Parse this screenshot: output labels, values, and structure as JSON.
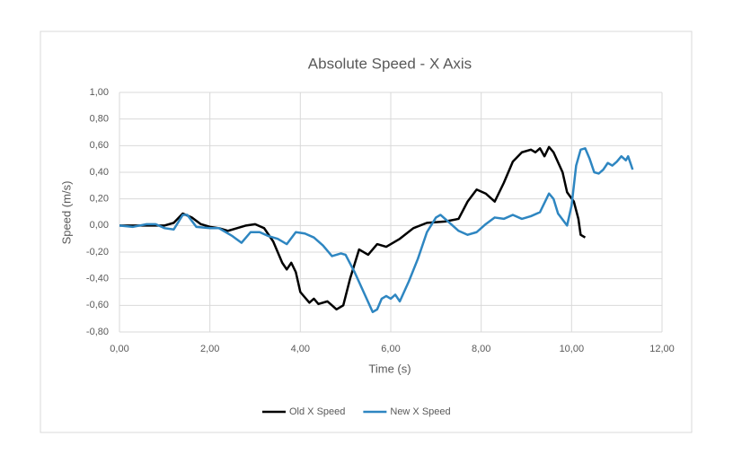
{
  "chart_data": {
    "type": "line",
    "title": "Absolute Speed - X Axis",
    "x_label": "Time (s)",
    "y_label": "Speed (m/s)",
    "xlim": [
      0,
      12
    ],
    "xticks": [
      {
        "value": 0,
        "label": "0,00"
      },
      {
        "value": 2,
        "label": "2,00"
      },
      {
        "value": 4,
        "label": "4,00"
      },
      {
        "value": 6,
        "label": "6,00"
      },
      {
        "value": 8,
        "label": "8,00"
      },
      {
        "value": 10,
        "label": "10,00"
      },
      {
        "value": 12,
        "label": "12,00"
      }
    ],
    "ylim": [
      -0.8,
      1
    ],
    "yticks": [
      {
        "value": -0.8,
        "label": "-0,80"
      },
      {
        "value": -0.6,
        "label": "-0,60"
      },
      {
        "value": -0.4,
        "label": "-0,40"
      },
      {
        "value": -0.2,
        "label": "-0,20"
      },
      {
        "value": 0,
        "label": "0,00"
      },
      {
        "value": 0.2,
        "label": "0,20"
      },
      {
        "value": 0.4,
        "label": "0,40"
      },
      {
        "value": 0.6,
        "label": "0,60"
      },
      {
        "value": 0.8,
        "label": "0,80"
      },
      {
        "value": 1,
        "label": "1,00"
      }
    ],
    "grid": true,
    "legend": "bottom",
    "series": [
      {
        "name": "Old X Speed",
        "color": "#000000",
        "x": [
          0,
          0.5,
          1.0,
          1.2,
          1.4,
          1.6,
          1.8,
          2.0,
          2.2,
          2.4,
          2.6,
          2.8,
          3.0,
          3.2,
          3.4,
          3.6,
          3.7,
          3.8,
          3.9,
          4.0,
          4.2,
          4.3,
          4.4,
          4.6,
          4.7,
          4.8,
          4.95,
          5.1,
          5.3,
          5.5,
          5.7,
          5.9,
          6.2,
          6.5,
          6.8,
          7.2,
          7.5,
          7.7,
          7.9,
          8.1,
          8.3,
          8.5,
          8.7,
          8.9,
          9.1,
          9.2,
          9.3,
          9.4,
          9.5,
          9.6,
          9.8,
          9.9,
          10.05,
          10.15,
          10.2,
          10.3
        ],
        "values": [
          0,
          0,
          0,
          0.02,
          0.09,
          0.06,
          0.01,
          -0.01,
          -0.02,
          -0.04,
          -0.02,
          0,
          0.01,
          -0.02,
          -0.12,
          -0.28,
          -0.33,
          -0.28,
          -0.35,
          -0.5,
          -0.58,
          -0.55,
          -0.59,
          -0.57,
          -0.6,
          -0.63,
          -0.6,
          -0.4,
          -0.18,
          -0.22,
          -0.14,
          -0.16,
          -0.1,
          -0.02,
          0.02,
          0.03,
          0.05,
          0.18,
          0.27,
          0.24,
          0.18,
          0.32,
          0.48,
          0.55,
          0.57,
          0.55,
          0.58,
          0.52,
          0.59,
          0.55,
          0.4,
          0.25,
          0.18,
          0.05,
          -0.07,
          -0.09
        ]
      },
      {
        "name": "New X Speed",
        "color": "#2e86c1",
        "x": [
          0,
          0.3,
          0.6,
          0.8,
          1.0,
          1.2,
          1.4,
          1.5,
          1.7,
          2.0,
          2.2,
          2.5,
          2.7,
          2.9,
          3.1,
          3.3,
          3.5,
          3.7,
          3.9,
          4.1,
          4.3,
          4.5,
          4.7,
          4.9,
          5.0,
          5.2,
          5.4,
          5.6,
          5.7,
          5.8,
          5.9,
          6.0,
          6.1,
          6.2,
          6.4,
          6.6,
          6.8,
          7.0,
          7.1,
          7.3,
          7.5,
          7.7,
          7.9,
          8.1,
          8.3,
          8.5,
          8.7,
          8.9,
          9.1,
          9.3,
          9.5,
          9.6,
          9.7,
          9.9,
          10.0,
          10.1,
          10.2,
          10.3,
          10.4,
          10.5,
          10.6,
          10.7,
          10.8,
          10.9,
          11.0,
          11.1,
          11.2,
          11.25,
          11.35
        ],
        "values": [
          0,
          -0.01,
          0.01,
          0.01,
          -0.02,
          -0.03,
          0.08,
          0.08,
          -0.01,
          -0.02,
          -0.02,
          -0.08,
          -0.13,
          -0.05,
          -0.05,
          -0.08,
          -0.1,
          -0.14,
          -0.05,
          -0.06,
          -0.09,
          -0.15,
          -0.23,
          -0.21,
          -0.22,
          -0.35,
          -0.5,
          -0.65,
          -0.63,
          -0.55,
          -0.53,
          -0.55,
          -0.52,
          -0.57,
          -0.42,
          -0.25,
          -0.05,
          0.06,
          0.08,
          0.02,
          -0.04,
          -0.07,
          -0.05,
          0.01,
          0.06,
          0.05,
          0.08,
          0.05,
          0.07,
          0.1,
          0.24,
          0.2,
          0.09,
          0,
          0.15,
          0.45,
          0.57,
          0.58,
          0.5,
          0.4,
          0.39,
          0.42,
          0.47,
          0.45,
          0.48,
          0.52,
          0.49,
          0.52,
          0.42
        ]
      }
    ]
  }
}
